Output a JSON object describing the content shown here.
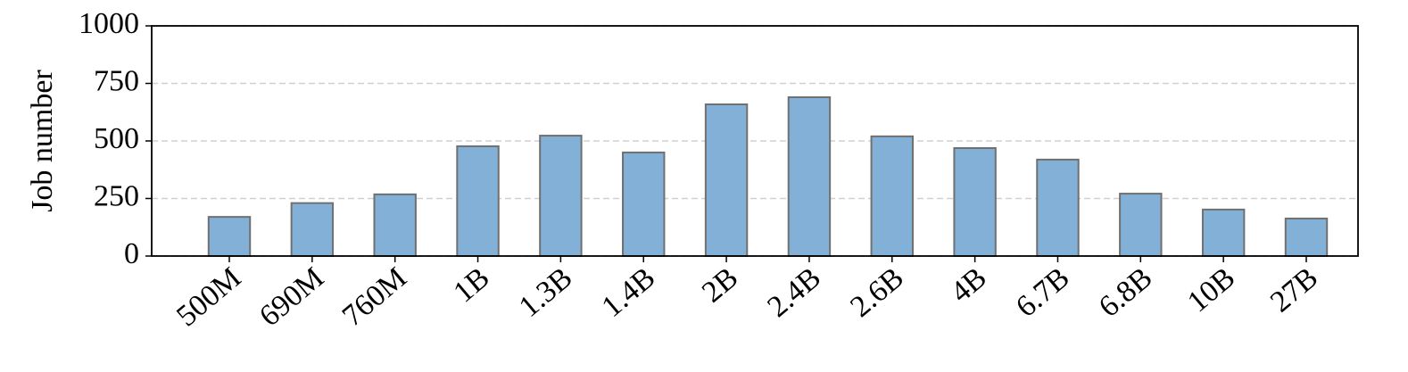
{
  "chart_data": {
    "type": "bar",
    "ylabel": "Job number",
    "categories": [
      "500M",
      "690M",
      "760M",
      "1B",
      "1.3B",
      "1.4B",
      "2B",
      "2.4B",
      "2.6B",
      "4B",
      "6.7B",
      "6.8B",
      "10B",
      "27B"
    ],
    "values": [
      170,
      230,
      268,
      477,
      523,
      450,
      659,
      690,
      520,
      469,
      419,
      271,
      202,
      163
    ],
    "color": "#82b0d6",
    "edgecolor": "#707070",
    "ylim": [
      0,
      1000
    ],
    "yticks": [
      0,
      250,
      500,
      750,
      1000
    ],
    "grid": true
  }
}
